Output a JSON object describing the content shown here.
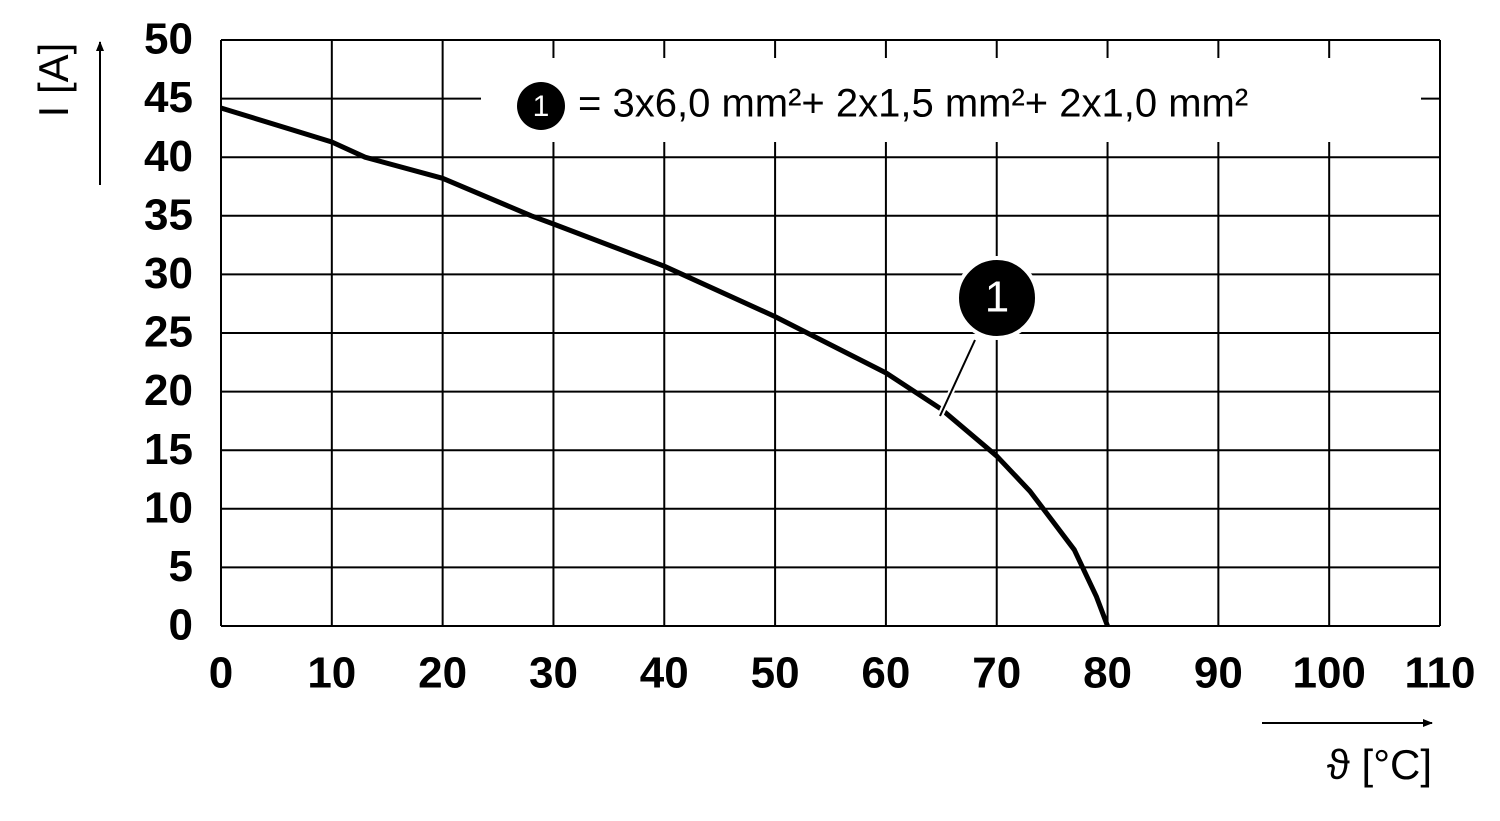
{
  "chart_data": {
    "type": "line",
    "x_label": "ϑ [°C]",
    "y_label": "I [A]",
    "x": [
      0,
      10,
      13,
      20,
      28,
      30,
      40,
      50,
      60,
      65,
      70,
      73,
      75,
      77,
      78,
      79,
      80
    ],
    "series": [
      {
        "name": "= 3x6,0 mm²+ 2x1,5 mm²+ 2x1,0 mm²",
        "label": "1",
        "color": "#000000",
        "values": [
          44.2,
          41.3,
          40,
          38.2,
          35,
          34.3,
          30.7,
          26.4,
          21.6,
          18.5,
          14.5,
          11.5,
          9,
          6.5,
          4.5,
          2.5,
          0
        ]
      }
    ],
    "xlim": [
      0,
      110
    ],
    "xticks": [
      0,
      10,
      20,
      30,
      40,
      50,
      60,
      70,
      80,
      90,
      100,
      110
    ],
    "ylim": [
      0,
      50
    ],
    "yticks": [
      0,
      5,
      10,
      15,
      20,
      25,
      30,
      35,
      40,
      45,
      50
    ],
    "grid": true
  }
}
